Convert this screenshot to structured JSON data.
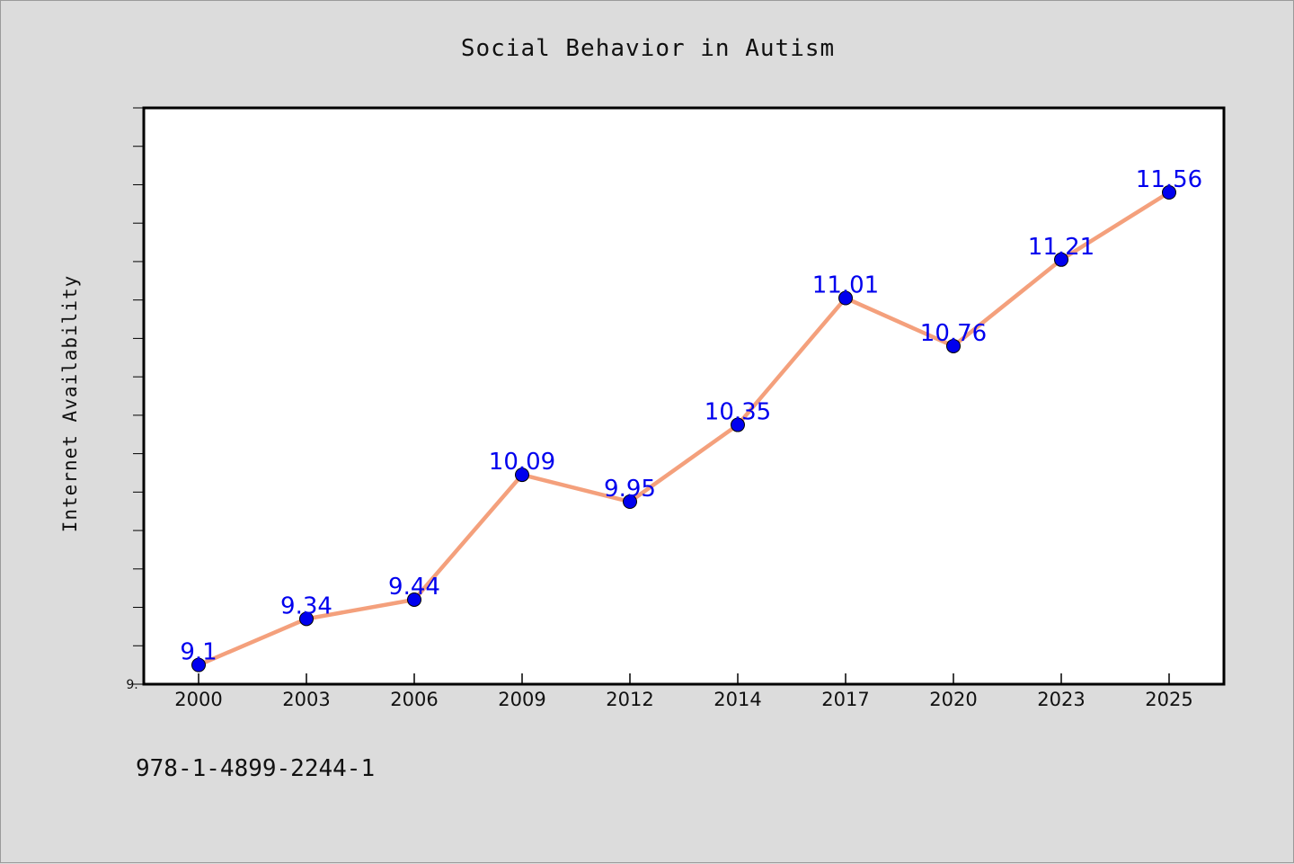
{
  "chart_data": {
    "type": "line",
    "title": "Social Behavior in Autism",
    "xlabel": "",
    "ylabel": "Internet Availability",
    "categories": [
      "2000",
      "2003",
      "2006",
      "2009",
      "2012",
      "2014",
      "2017",
      "2020",
      "2023",
      "2025"
    ],
    "series": [
      {
        "values": [
          9.1,
          9.34,
          9.44,
          10.09,
          9.95,
          10.35,
          11.01,
          10.76,
          11.21,
          11.56
        ],
        "labels": [
          "9.1",
          "9.34",
          "9.44",
          "10.09",
          "9.95",
          "10.35",
          "11.01",
          "10.76",
          "11.21",
          "11.56"
        ]
      }
    ],
    "ylim": [
      9.0,
      12.0
    ],
    "y_min_label": "9.",
    "grid": false,
    "legend": "none",
    "line_color": "#f4a07c",
    "marker_color": "#0000ee",
    "label_color": "#0000ee"
  },
  "footer": {
    "isbn": "978-1-4899-2244-1"
  }
}
